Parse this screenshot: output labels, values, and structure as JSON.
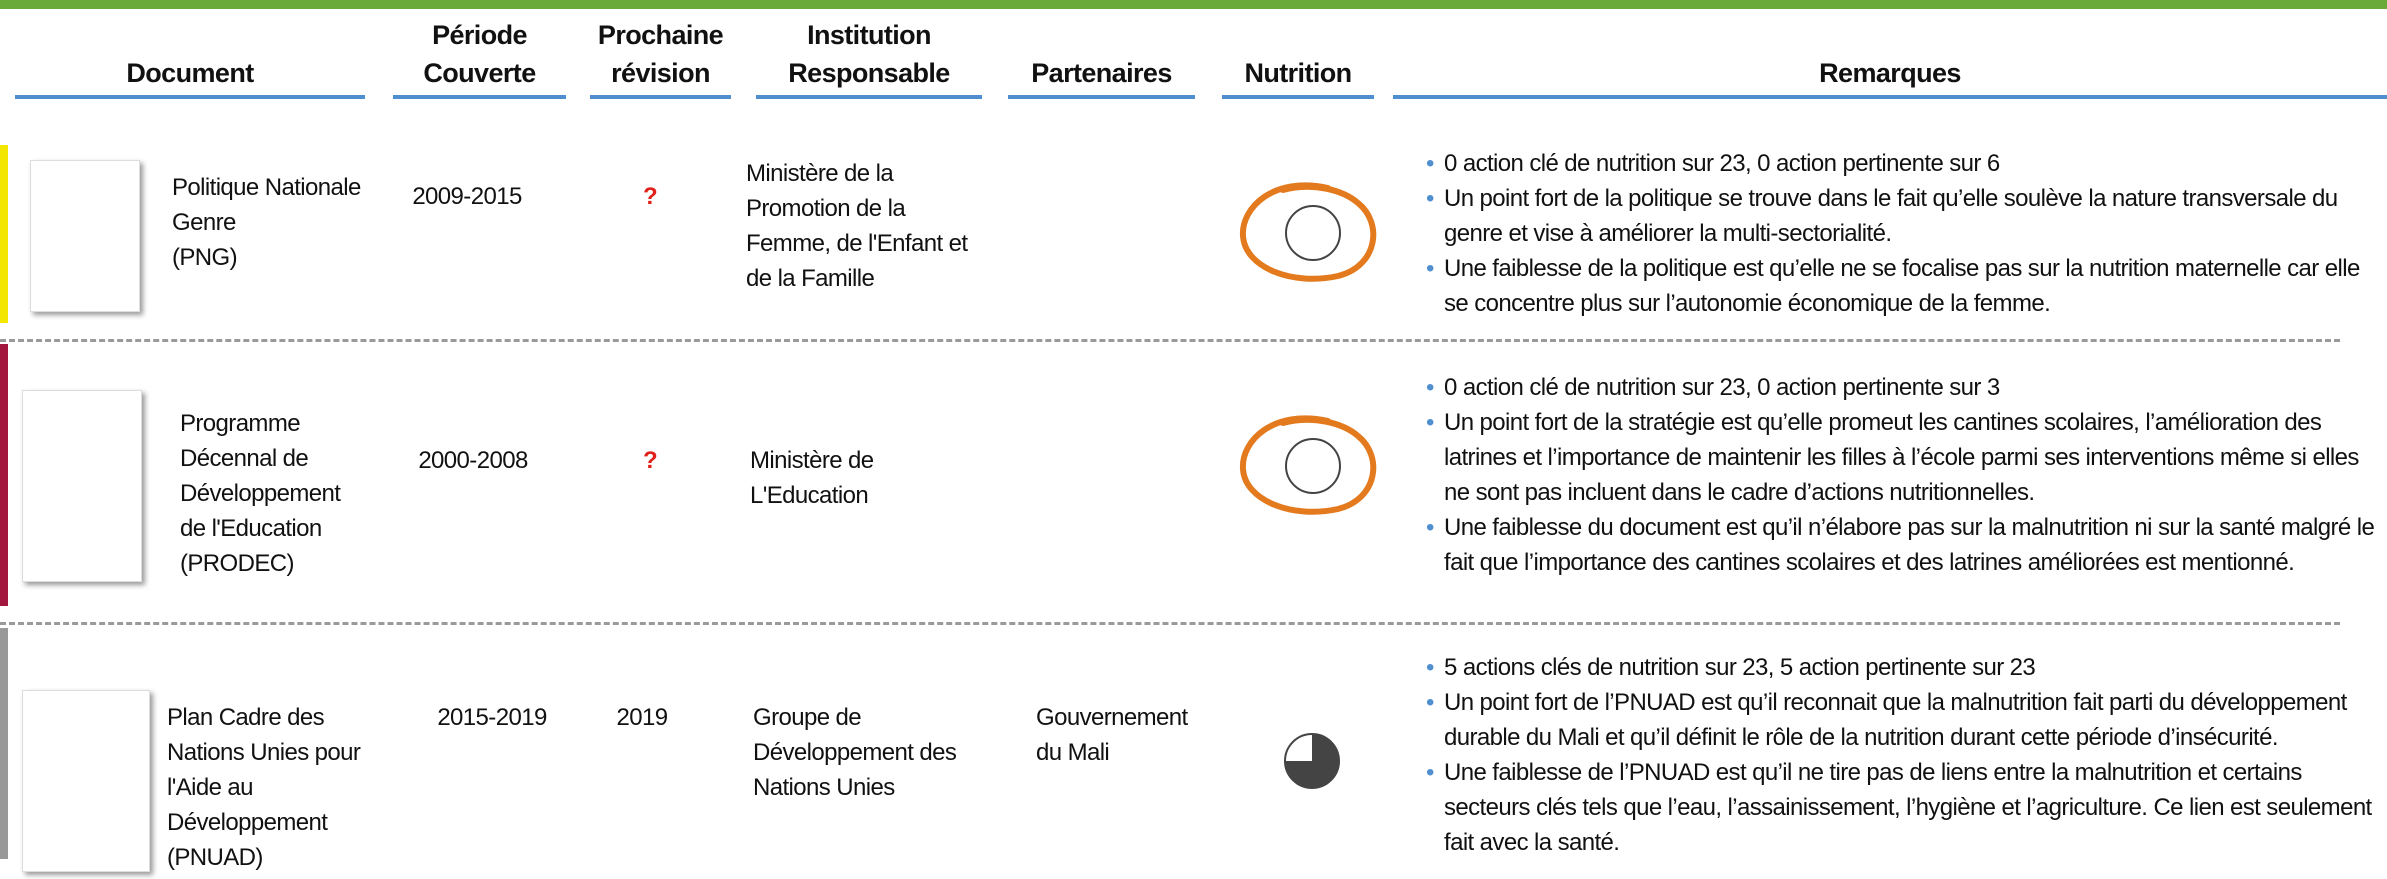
{
  "header": {
    "columns": [
      [
        "Document"
      ],
      [
        "Période",
        "Couverte"
      ],
      [
        "Prochaine",
        "révision"
      ],
      [
        "Institution",
        "Responsable"
      ],
      [
        "Partenaires"
      ],
      [
        "Nutrition"
      ],
      [
        "Remarques"
      ]
    ]
  },
  "rows": [
    {
      "document": [
        "Politique Nationale",
        "Genre",
        "(PNG)"
      ],
      "period": "2009-2015",
      "revision": "?",
      "institution": "Ministère de la Promotion de la Femme, de l'Enfant et de la Famille",
      "nutrition": 0,
      "remarks": [
        "0 action clé de nutrition sur 23, 0 action pertinente sur 6",
        "Un point fort de la politique se trouve dans le fait qu’elle soulève la nature transversale du genre et vise à améliorer la multi-sectorialité.",
        "Une faiblesse de la politique est qu’elle ne se focalise pas sur la nutrition maternelle car elle se concentre plus sur l’autonomie économique de la femme."
      ]
    },
    {
      "document": [
        "Programme",
        "Décennal de",
        "Développement",
        "de l'Education",
        "(PRODEC)"
      ],
      "period": "2000-2008",
      "revision": "?",
      "institution": "Ministère de L'Education",
      "nutrition": 0,
      "remarks": [
        "0 action clé de nutrition sur 23, 0 action pertinente sur 3",
        "Un point fort de la stratégie est qu’elle promeut les cantines scolaires, l’amélioration des latrines et l’importance de maintenir les filles à l’école parmi ses interventions même si elles ne sont pas incluent dans le cadre d’actions nutritionnelles.",
        "Une faiblesse du document est qu’il n’élabore pas sur la malnutrition ni sur la santé malgré le fait que l’importance des cantines scolaires et des latrines améliorées est mentionné."
      ]
    },
    {
      "document": [
        "Plan Cadre des",
        "Nations Unies pour",
        "l'Aide au",
        "Développement",
        "(PNUAD)"
      ],
      "period": "2015-2019",
      "revision": "2019",
      "institution": "Groupe de Développement des Nations Unies",
      "partners": "Gouvernement du Mali",
      "nutrition": 75,
      "remarks": [
        "5 actions clés de nutrition sur 23, 5 action pertinente sur 23",
        "Un point fort de l’PNUAD est qu’il reconnait que la malnutrition fait parti du développement durable du Mali et qu’il définit le rôle de la nutrition durant cette période d’insécurité.",
        "Une faiblesse de l’PNUAD est qu’il ne tire pas de liens entre la malnutrition et certains secteurs clés tels que l’eau, l’assainissement, l’hygiène et l’agriculture. Ce lien est seulement fait avec la santé."
      ]
    }
  ]
}
